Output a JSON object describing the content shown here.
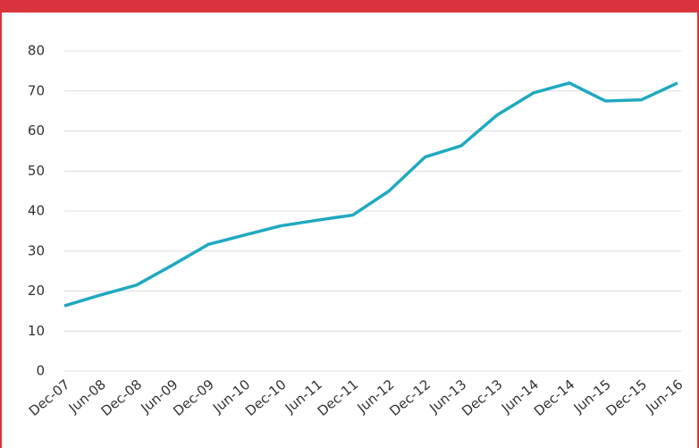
{
  "chart_data": {
    "type": "line",
    "categories": [
      "Dec-07",
      "Jun-08",
      "Dec-08",
      "Jun-09",
      "Dec-09",
      "Jun-10",
      "Dec-10",
      "Jun-11",
      "Dec-11",
      "Jun-12",
      "Dec-12",
      "Jun-13",
      "Dec-13",
      "Jun-14",
      "Dec-14",
      "Jun-15",
      "Dec-15",
      "Jun-16"
    ],
    "series": [
      {
        "color": "#1fa9c0",
        "values": [
          16.3,
          19,
          21.5,
          26.5,
          31.7,
          34,
          36.3,
          37.7,
          39,
          45,
          53.5,
          56.3,
          64,
          69.5,
          72,
          67.5,
          67.8,
          72
        ]
      }
    ],
    "ylim": [
      0,
      80
    ],
    "yticks": [
      0,
      10,
      20,
      30,
      40,
      50,
      60,
      70,
      80
    ],
    "grid": true
  }
}
